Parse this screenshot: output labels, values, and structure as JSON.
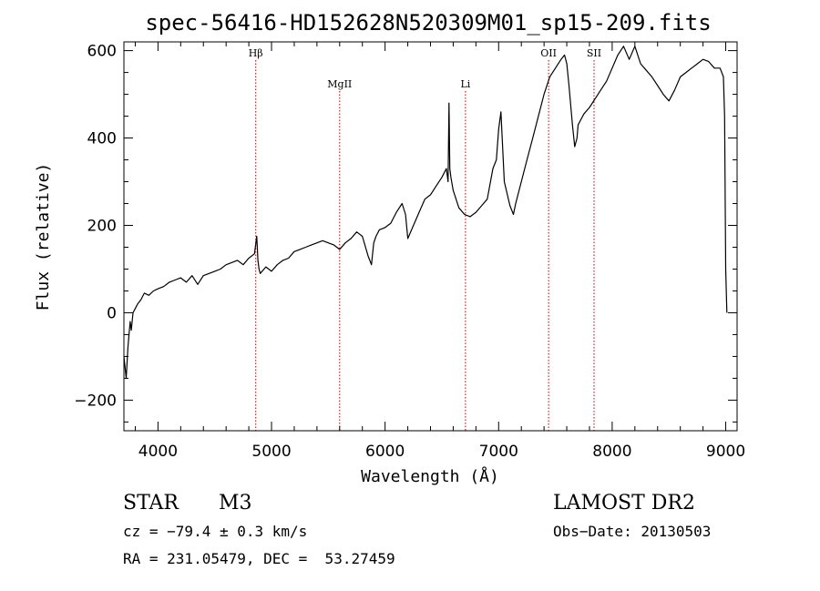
{
  "chart_data": {
    "type": "line",
    "title": "spec-56416-HD152628N520309M01_sp15-209.fits",
    "xlabel": "Wavelength (Å)",
    "ylabel": "Flux (relative)",
    "xlim": [
      3700,
      9100
    ],
    "ylim": [
      -270,
      620
    ],
    "xticks": [
      4000,
      5000,
      6000,
      7000,
      8000,
      9000
    ],
    "yticks": [
      -200,
      0,
      200,
      400,
      600
    ],
    "grid": false,
    "series": [
      {
        "x": [
          3700,
          3720,
          3735,
          3745,
          3755,
          3765,
          3780,
          3800,
          3820,
          3850,
          3880,
          3920,
          3960,
          4000,
          4050,
          4100,
          4150,
          4200,
          4250,
          4300,
          4350,
          4400,
          4450,
          4500,
          4550,
          4600,
          4650,
          4700,
          4750,
          4800,
          4850,
          4870,
          4880,
          4890,
          4900,
          4950,
          5000,
          5050,
          5100,
          5150,
          5200,
          5250,
          5300,
          5350,
          5400,
          5450,
          5500,
          5550,
          5600,
          5650,
          5700,
          5750,
          5800,
          5850,
          5880,
          5900,
          5920,
          5950,
          6000,
          6050,
          6100,
          6150,
          6180,
          6200,
          6250,
          6300,
          6350,
          6400,
          6450,
          6500,
          6540,
          6555,
          6563,
          6570,
          6580,
          6600,
          6650,
          6700,
          6750,
          6800,
          6850,
          6900,
          6950,
          6980,
          7000,
          7020,
          7050,
          7100,
          7130,
          7150,
          7200,
          7250,
          7300,
          7350,
          7400,
          7450,
          7500,
          7550,
          7580,
          7600,
          7620,
          7650,
          7670,
          7690,
          7700,
          7720,
          7750,
          7800,
          7850,
          7900,
          7950,
          8000,
          8050,
          8100,
          8150,
          8200,
          8250,
          8300,
          8350,
          8400,
          8450,
          8500,
          8550,
          8600,
          8650,
          8700,
          8750,
          8800,
          8850,
          8900,
          8950,
          8980,
          8990,
          9000,
          9010
        ],
        "values": [
          -100,
          -150,
          -80,
          -50,
          -20,
          -40,
          0,
          10,
          20,
          30,
          45,
          40,
          50,
          55,
          60,
          70,
          75,
          80,
          70,
          85,
          65,
          85,
          90,
          95,
          100,
          110,
          115,
          120,
          110,
          125,
          135,
          175,
          120,
          100,
          90,
          105,
          95,
          110,
          120,
          125,
          140,
          145,
          150,
          155,
          160,
          165,
          160,
          155,
          145,
          160,
          170,
          185,
          175,
          130,
          110,
          160,
          175,
          190,
          195,
          205,
          230,
          250,
          225,
          170,
          200,
          230,
          260,
          270,
          290,
          310,
          330,
          300,
          480,
          330,
          310,
          280,
          240,
          225,
          220,
          230,
          245,
          260,
          330,
          350,
          420,
          460,
          300,
          245,
          225,
          250,
          300,
          350,
          400,
          450,
          500,
          540,
          560,
          580,
          590,
          570,
          520,
          430,
          380,
          400,
          430,
          440,
          455,
          470,
          490,
          510,
          530,
          560,
          590,
          610,
          580,
          610,
          570,
          555,
          540,
          520,
          500,
          485,
          510,
          540,
          550,
          560,
          570,
          580,
          575,
          560,
          560,
          540,
          450,
          100,
          0
        ]
      }
    ],
    "annotations": [
      {
        "label": "Hβ",
        "x": 4861,
        "level": "top"
      },
      {
        "label": "MgII",
        "x": 5600,
        "level": "mid"
      },
      {
        "label": "Li",
        "x": 6708,
        "level": "mid"
      },
      {
        "label": "OII",
        "x": 7440,
        "level": "top"
      },
      {
        "label": "SII",
        "x": 7840,
        "level": "top"
      }
    ],
    "line_color": "#000000",
    "marker_color": "#c00000"
  },
  "info": {
    "object_type": "STAR",
    "subclass": "M3",
    "survey": "LAMOST DR2",
    "velocity": "cz = −79.4 ± 0.3 km/s",
    "obs_date": "Obs−Date: 20130503",
    "coords": "RA = 231.05479, DEC =  53.27459"
  }
}
